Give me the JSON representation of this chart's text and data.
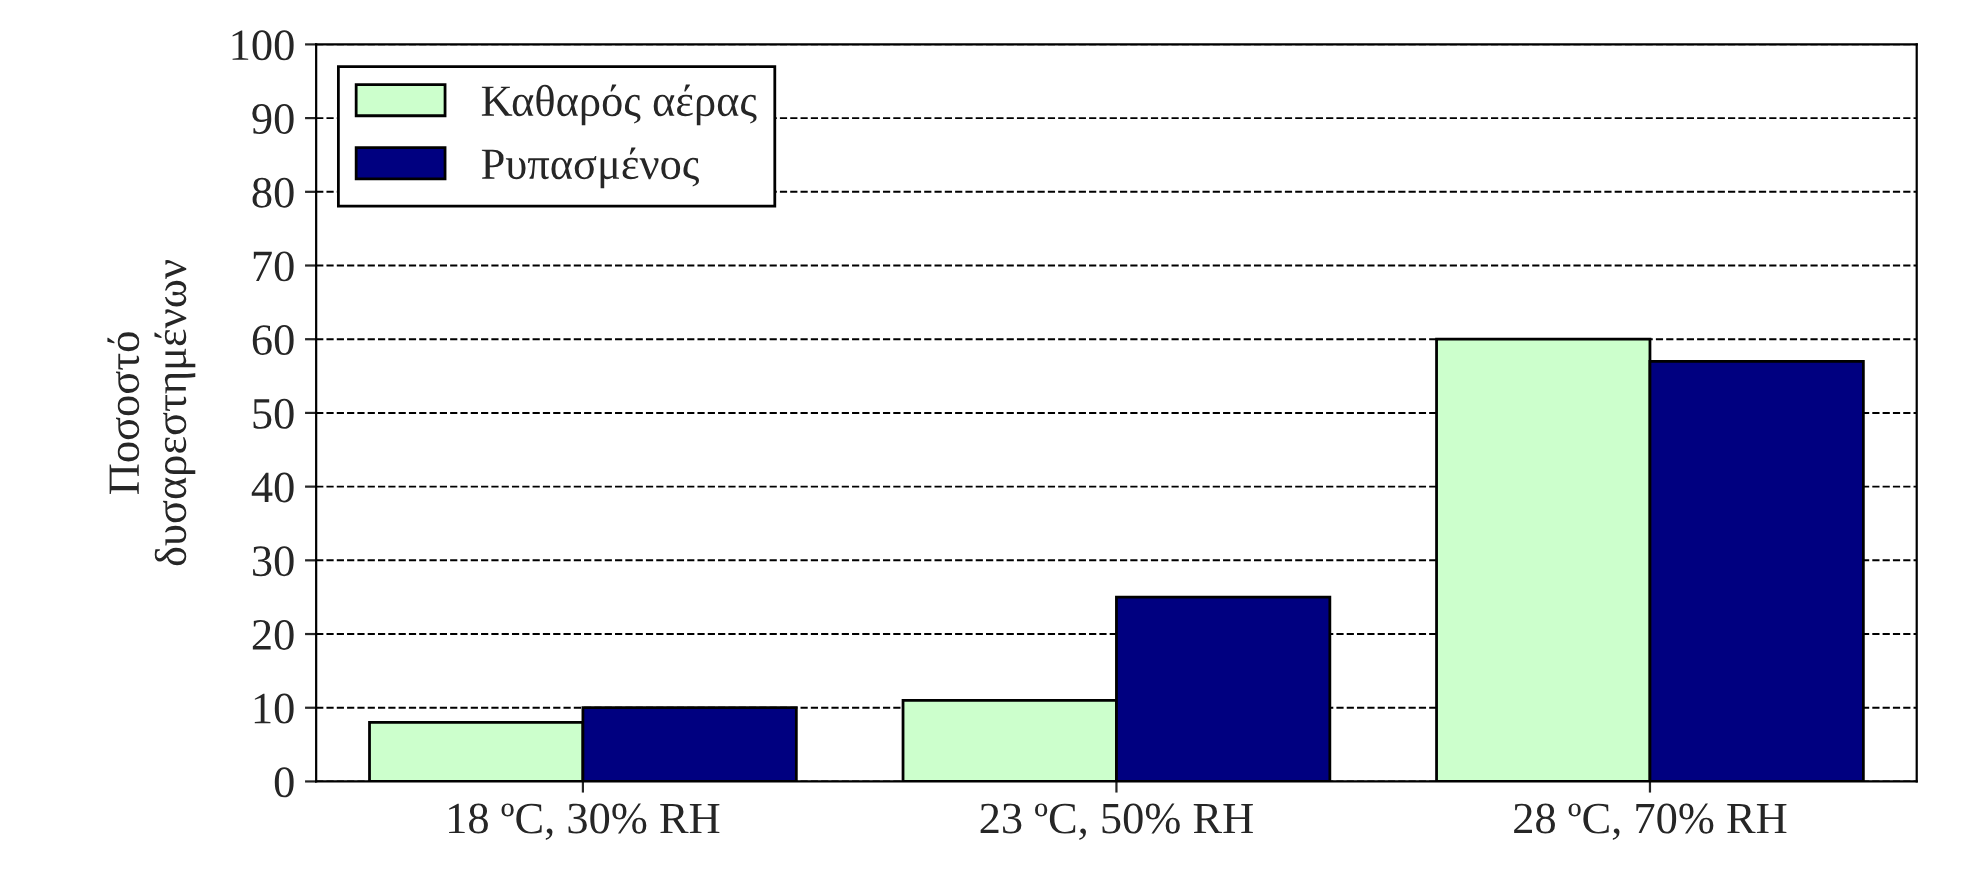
{
  "chart_data": {
    "type": "bar",
    "ylabel": "Ποσοστό\nδυσαρεστημένων",
    "categories": [
      "18 ºC, 30% RH",
      "23 ºC, 50% RH",
      "28 ºC, 70% RH"
    ],
    "series": [
      {
        "name": "Καθαρός αέρας",
        "color": "#ccffcc",
        "values": [
          8,
          11,
          60
        ]
      },
      {
        "name": "Ρυπασμένος",
        "color": "#000080",
        "values": [
          10,
          25,
          57
        ]
      }
    ],
    "ylim": [
      0,
      100
    ],
    "yticks": [
      0,
      10,
      20,
      30,
      40,
      50,
      60,
      70,
      80,
      90,
      100
    ],
    "grid": "y",
    "line_style": "dashed",
    "legend": "top left"
  }
}
